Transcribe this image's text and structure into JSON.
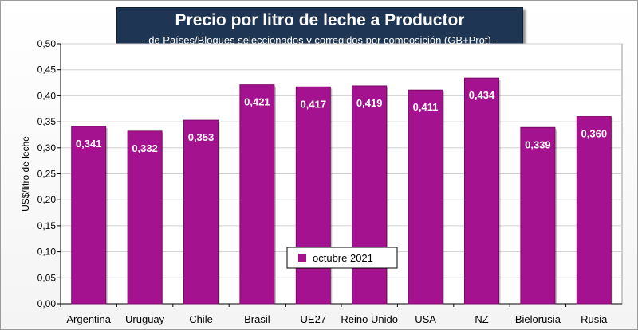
{
  "chart_data": {
    "type": "bar",
    "title": "Precio por litro de leche a Productor",
    "subtitle": "-  de Países/Bloques seleccionados y corregidos por composición (GB+Prot) -",
    "xlabel": "",
    "ylabel": "US$/litro de leche",
    "ylim": [
      0,
      0.5
    ],
    "ytick_step": 0.05,
    "grid": true,
    "legend_position": "bottom-center",
    "categories": [
      "Argentina",
      "Uruguay",
      "Chile",
      "Brasil",
      "UE27",
      "Reino Unido",
      "USA",
      "NZ",
      "Bielorusia",
      "Rusia"
    ],
    "series": [
      {
        "name": "octubre 2021",
        "color": "#a5128f",
        "values": [
          0.341,
          0.332,
          0.353,
          0.421,
          0.417,
          0.419,
          0.411,
          0.434,
          0.339,
          0.36
        ],
        "labels": [
          "0,341",
          "0,332",
          "0,353",
          "0,421",
          "0,417",
          "0,419",
          "0,411",
          "0,434",
          "0,339",
          "0,360"
        ]
      }
    ]
  }
}
